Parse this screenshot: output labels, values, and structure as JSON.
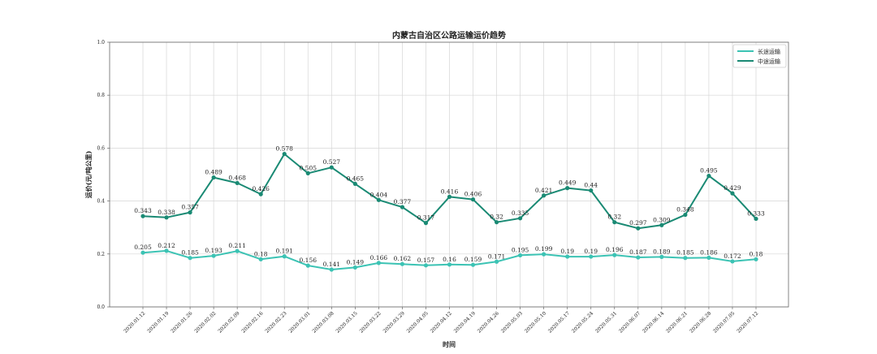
{
  "chart_data": {
    "type": "line",
    "title": "内蒙古自治区公路运输运价趋势",
    "xlabel": "时间",
    "ylabel": "运价(元/吨公里)",
    "ylim": [
      0.0,
      1.0
    ],
    "yticks": [
      "0.0",
      "0.2",
      "0.4",
      "0.6",
      "0.8",
      "1.0"
    ],
    "grid": true,
    "legend_position": "top-right",
    "categories": [
      "2020.01.12",
      "2020.01.19",
      "2020.01.26",
      "2020.02.02",
      "2020.02.09",
      "2020.02.16",
      "2020.02.23",
      "2020.03.01",
      "2020.03.08",
      "2020.03.15",
      "2020.03.22",
      "2020.03.29",
      "2020.04.05",
      "2020.04.12",
      "2020.04.19",
      "2020.04.26",
      "2020.05.03",
      "2020.05.10",
      "2020.05.17",
      "2020.05.24",
      "2020.05.31",
      "2020.06.07",
      "2020.06.14",
      "2020.06.21",
      "2020.06.28",
      "2020.07.05",
      "2020.07.12"
    ],
    "series": [
      {
        "name": "长途运输",
        "color": "#3cc3b4",
        "values": [
          0.205,
          0.212,
          0.185,
          0.193,
          0.211,
          0.18,
          0.191,
          0.156,
          0.141,
          0.149,
          0.166,
          0.162,
          0.157,
          0.16,
          0.159,
          0.171,
          0.195,
          0.199,
          0.19,
          0.19,
          0.196,
          0.187,
          0.189,
          0.185,
          0.186,
          0.172,
          0.18
        ]
      },
      {
        "name": "中途运输",
        "color": "#1a8a74",
        "values": [
          0.343,
          0.338,
          0.357,
          0.489,
          0.468,
          0.426,
          0.578,
          0.505,
          0.527,
          0.465,
          0.404,
          0.377,
          0.317,
          0.416,
          0.406,
          0.32,
          0.335,
          0.421,
          0.449,
          0.44,
          0.32,
          0.297,
          0.309,
          0.348,
          0.495,
          0.429,
          0.333
        ]
      }
    ]
  }
}
